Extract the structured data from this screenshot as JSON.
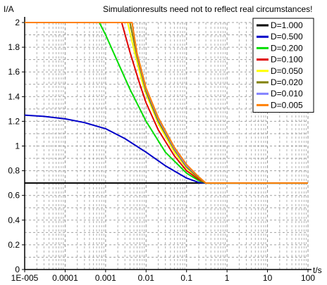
{
  "chart_data": {
    "type": "line",
    "title": "Simulationresults need not to reflect real circumstances!",
    "ylabel": "I/A",
    "xlabel": "t/s",
    "x_scale": "log",
    "xlim": [
      1e-05,
      100
    ],
    "ylim": [
      0,
      2
    ],
    "x_ticks": [
      "1E-005",
      "0.0001",
      "0.001",
      "0.01",
      "0.1",
      "1",
      "10",
      "100"
    ],
    "y_ticks": [
      "0",
      "0.2",
      "0.4",
      "0.6",
      "0.8",
      "1",
      "1.2",
      "1.4",
      "1.6",
      "1.8",
      "2"
    ],
    "grid": true,
    "legend_position": "top-right",
    "series": [
      {
        "name": "D=1.000",
        "color": "#000000",
        "x": [
          1e-05,
          100
        ],
        "y": [
          0.7,
          0.7
        ]
      },
      {
        "name": "D=0.500",
        "color": "#0000c8",
        "x": [
          1e-05,
          3e-05,
          0.0001,
          0.0003,
          0.001,
          0.003,
          0.01,
          0.03,
          0.1,
          0.2,
          0.3,
          100
        ],
        "y": [
          1.25,
          1.24,
          1.22,
          1.19,
          1.14,
          1.06,
          0.95,
          0.84,
          0.74,
          0.705,
          0.7,
          0.7
        ]
      },
      {
        "name": "D=0.200",
        "color": "#00dd00",
        "x": [
          1e-05,
          0.0007,
          0.001,
          0.002,
          0.004,
          0.01,
          0.03,
          0.1,
          0.2,
          0.3,
          100
        ],
        "y": [
          2.0,
          2.0,
          1.9,
          1.68,
          1.46,
          1.2,
          0.95,
          0.78,
          0.72,
          0.7,
          0.7
        ]
      },
      {
        "name": "D=0.100",
        "color": "#e00000",
        "x": [
          1e-05,
          0.0025,
          0.004,
          0.007,
          0.01,
          0.02,
          0.05,
          0.1,
          0.2,
          0.3,
          100
        ],
        "y": [
          2.0,
          2.0,
          1.76,
          1.5,
          1.35,
          1.13,
          0.92,
          0.8,
          0.73,
          0.7,
          0.7
        ]
      },
      {
        "name": "D=0.050",
        "color": "#ffff00",
        "x": [
          1e-05,
          0.0035,
          0.005,
          0.008,
          0.01,
          0.02,
          0.05,
          0.1,
          0.2,
          0.3,
          100
        ],
        "y": [
          2.0,
          2.0,
          1.78,
          1.52,
          1.42,
          1.18,
          0.95,
          0.82,
          0.74,
          0.7,
          0.7
        ]
      },
      {
        "name": "D=0.020",
        "color": "#808000",
        "x": [
          1e-05,
          0.004,
          0.006,
          0.01,
          0.02,
          0.05,
          0.1,
          0.2,
          0.3,
          100
        ],
        "y": [
          2.0,
          2.0,
          1.72,
          1.44,
          1.2,
          0.97,
          0.83,
          0.74,
          0.7,
          0.7
        ]
      },
      {
        "name": "D=0.010",
        "color": "#8080ff",
        "x": [
          1e-05,
          0.0045,
          0.006,
          0.01,
          0.02,
          0.05,
          0.1,
          0.2,
          0.3,
          100
        ],
        "y": [
          2.0,
          2.0,
          1.74,
          1.46,
          1.22,
          0.98,
          0.84,
          0.75,
          0.7,
          0.7
        ]
      },
      {
        "name": "D=0.005",
        "color": "#ff8000",
        "x": [
          1e-05,
          0.0045,
          0.006,
          0.01,
          0.02,
          0.05,
          0.1,
          0.2,
          0.3,
          100
        ],
        "y": [
          2.0,
          2.0,
          1.75,
          1.47,
          1.23,
          0.99,
          0.85,
          0.75,
          0.7,
          0.7
        ]
      }
    ]
  }
}
